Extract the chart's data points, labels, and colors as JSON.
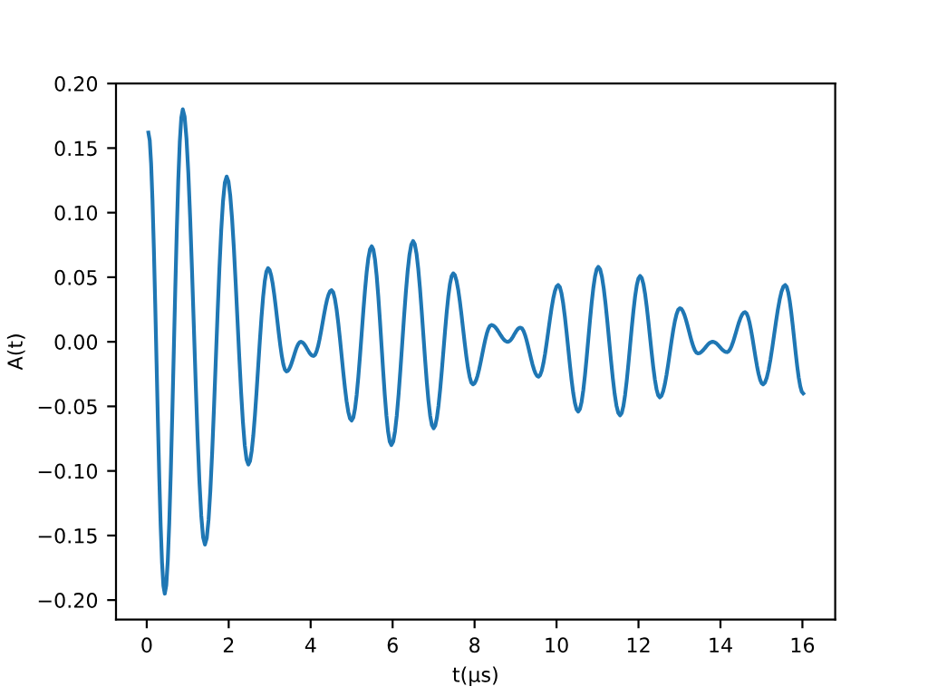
{
  "chart_data": {
    "type": "line",
    "xlabel": "t(μs)",
    "ylabel": "A(t)",
    "x": [
      0.04,
      0.44,
      0.88,
      1.42,
      1.95,
      2.48,
      2.96,
      3.41,
      3.76,
      4.07,
      4.51,
      5.0,
      5.49,
      5.97,
      6.5,
      7.0,
      7.48,
      7.96,
      8.41,
      8.81,
      9.12,
      9.56,
      10.04,
      10.53,
      11.02,
      11.55,
      12.04,
      12.52,
      13.01,
      13.45,
      13.81,
      14.16,
      14.6,
      15.04,
      15.58,
      16.02
    ],
    "series": [
      {
        "color": "#1f77b4",
        "values": [
          0.162,
          -0.195,
          0.18,
          -0.157,
          0.128,
          -0.095,
          0.057,
          -0.023,
          0.0,
          -0.011,
          0.04,
          -0.061,
          0.074,
          -0.08,
          0.078,
          -0.067,
          0.053,
          -0.033,
          0.013,
          0.0,
          0.011,
          -0.027,
          0.044,
          -0.054,
          0.058,
          -0.057,
          0.051,
          -0.043,
          0.026,
          -0.009,
          0.0,
          -0.008,
          0.023,
          -0.033,
          0.044,
          -0.04
        ]
      }
    ],
    "xlim": [
      -0.75,
      16.8
    ],
    "ylim": [
      -0.215,
      0.2
    ],
    "xticks": [
      0,
      2,
      4,
      6,
      8,
      10,
      12,
      14,
      16
    ],
    "yticks": [
      {
        "value": -0.2,
        "label": "−0.20"
      },
      {
        "value": -0.15,
        "label": "−0.15"
      },
      {
        "value": -0.1,
        "label": "−0.10"
      },
      {
        "value": -0.05,
        "label": "−0.05"
      },
      {
        "value": 0,
        "label": "0.00"
      },
      {
        "value": 0.05,
        "label": "0.05"
      },
      {
        "value": 0.1,
        "label": "0.10"
      },
      {
        "value": 0.15,
        "label": "0.15"
      },
      {
        "value": 0.2,
        "label": "0.20"
      }
    ],
    "grid": false,
    "legend": false
  }
}
